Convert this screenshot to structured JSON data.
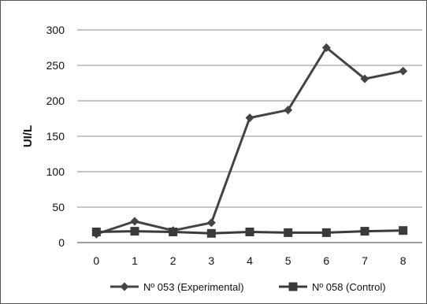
{
  "chart_data": {
    "type": "line",
    "xlabel": "",
    "ylabel": "UI/L",
    "x": [
      0,
      1,
      2,
      3,
      4,
      5,
      6,
      7,
      8
    ],
    "ylim": [
      0,
      300
    ],
    "yticks": [
      0,
      50,
      100,
      150,
      200,
      250,
      300
    ],
    "grid": "horizontal",
    "legend_position": "bottom",
    "series": [
      {
        "name": "Nº 053 (Experimental)",
        "marker": "diamond",
        "color": "#444444",
        "values": [
          12,
          30,
          17,
          28,
          176,
          187,
          275,
          231,
          242
        ]
      },
      {
        "name": "Nº 058 (Control)",
        "marker": "square",
        "color": "#3a3a3a",
        "values": [
          15,
          16,
          15,
          13,
          15,
          14,
          14,
          16,
          17
        ]
      }
    ]
  }
}
